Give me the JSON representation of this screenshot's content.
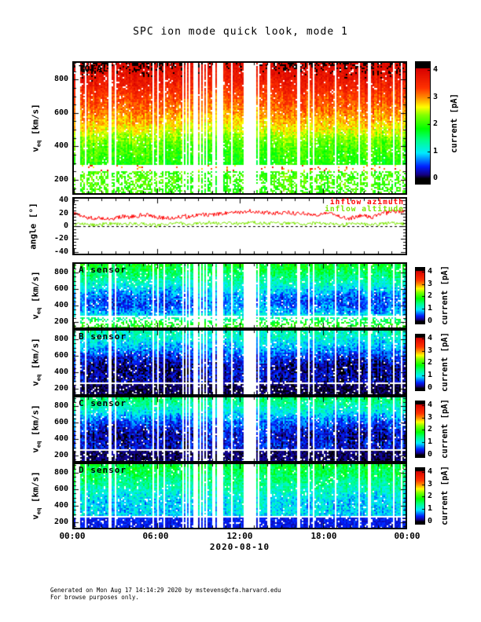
{
  "title": "SPC ion mode quick look, mode 1",
  "date_label": "2020-08-10",
  "footer": {
    "line1": "Generated on Mon Aug 17 14:14:29 2020 by mstevens@cfa.harvard.edu",
    "line2": "For browse purposes only."
  },
  "x_axis": {
    "tick_labels": [
      "00:00",
      "06:00",
      "12:00",
      "18:00",
      "00:00"
    ],
    "tick_hours": [
      0,
      6,
      12,
      18,
      24
    ],
    "minor_step_hours": 1,
    "span_hours": 24,
    "label": "2020-08-10"
  },
  "colorbar": {
    "label": "current [pA]",
    "ticks": [
      0,
      1,
      2,
      3,
      4
    ],
    "range": [
      -0.2,
      4.3
    ],
    "saturation_black_above": 4.08
  },
  "colors": {
    "background": "#ffffff",
    "axis": "#000000",
    "azimuth_line": "#ff0000",
    "altitude_line": "#7ce600",
    "colormap": "black-blue-cyan-green-yellow-orange-red rainbow"
  },
  "activity_by_hour": [
    0.55,
    0.8,
    0.9,
    0.9,
    0.85,
    0.9,
    0.9,
    0.85,
    0.7,
    0.35,
    0.3,
    0.35,
    0.45,
    0.3,
    0.35,
    0.8,
    0.9,
    0.8,
    0.55,
    0.8,
    0.9,
    0.9,
    0.85,
    0.65,
    0.55
  ],
  "data_gaps": {
    "wide_gaps_hours": [
      [
        2.55,
        2.75
      ],
      [
        6.0,
        6.15
      ],
      [
        8.65,
        8.95
      ],
      [
        10.3,
        10.65
      ],
      [
        12.55,
        13.25
      ],
      [
        14.0,
        14.2
      ],
      [
        16.2,
        16.4
      ],
      [
        18.85,
        19.05
      ],
      [
        21.3,
        21.45
      ]
    ],
    "narrow_gap_base_probability": 0.07,
    "quiet_gap_extra": 0.5
  },
  "chart_data": [
    {
      "id": "total",
      "type": "heatmap",
      "label": "TOTAL",
      "ylabel": "v_eq [km/s]",
      "ylim": [
        120,
        900
      ],
      "yticks": [
        200,
        400,
        600,
        800
      ],
      "y_minor_step": 50,
      "white_band_v": [
        255,
        285
      ],
      "profile": {
        "v": [
          150,
          200,
          250,
          300,
          350,
          400,
          450,
          500,
          550,
          600,
          700,
          800,
          900
        ],
        "current": [
          2.0,
          2.1,
          2.0,
          1.9,
          2.0,
          2.1,
          2.3,
          2.6,
          2.8,
          3.0,
          3.3,
          3.7,
          4.0
        ]
      },
      "noise": 0.25,
      "active_dip": 0,
      "bottom_dropout": 0.35,
      "band_speckle_current": 3.2
    },
    {
      "id": "angle",
      "type": "line",
      "label": "",
      "ylabel": "angle [°]",
      "ylim": [
        -43,
        43
      ],
      "yticks": [
        -40,
        -20,
        0,
        20,
        40
      ],
      "y_minor_step": 5,
      "zero_line": "dashed",
      "x_step_hours": 0.5,
      "series": [
        {
          "name": "inflow azimuth",
          "color": "#ff0000",
          "jitter_deg": 3.2,
          "values": [
            20,
            17,
            14,
            12,
            13,
            12,
            13,
            15,
            14,
            16,
            18,
            17,
            14,
            13,
            12,
            14,
            16,
            15,
            17,
            18,
            17,
            19,
            20,
            22,
            21,
            23,
            24,
            22,
            21,
            20,
            21,
            22,
            20,
            21,
            19,
            18,
            19,
            20,
            17,
            14,
            12,
            15,
            17,
            13,
            18,
            22,
            24,
            23,
            24
          ]
        },
        {
          "name": "inflow altitude",
          "color": "#7ce600",
          "jitter_deg": 2.6,
          "values": [
            3,
            4,
            3,
            2,
            3,
            4,
            3,
            3,
            4,
            3,
            4,
            3,
            2,
            3,
            4,
            5,
            4,
            3,
            4,
            5,
            4,
            5,
            6,
            5,
            4,
            5,
            6,
            5,
            4,
            5,
            4,
            5,
            4,
            3,
            4,
            5,
            4,
            3,
            3,
            2,
            3,
            4,
            3,
            2,
            3,
            4,
            5,
            4,
            3
          ]
        }
      ]
    },
    {
      "id": "a_sensor",
      "type": "heatmap",
      "label": "A sensor",
      "ylabel": "v_eq [km/s]",
      "ylim": [
        135,
        905
      ],
      "yticks": [
        200,
        400,
        600,
        800
      ],
      "y_minor_step": 50,
      "white_band_v": [
        250,
        285
      ],
      "profile": {
        "v": [
          150,
          200,
          250,
          300,
          350,
          400,
          450,
          500,
          600,
          700,
          800,
          900
        ],
        "current": [
          2.0,
          1.8,
          1.5,
          1.1,
          1.0,
          0.95,
          0.95,
          1.0,
          1.2,
          1.4,
          1.6,
          1.8
        ]
      },
      "noise": 0.3,
      "active_dip": 0.5,
      "bottom_dropout": 0.45
    },
    {
      "id": "b_sensor",
      "type": "heatmap",
      "label": "B sensor",
      "ylabel": "v_eq [km/s]",
      "ylim": [
        135,
        905
      ],
      "yticks": [
        200,
        400,
        600,
        800
      ],
      "y_minor_step": 50,
      "white_band_v": [
        250,
        285
      ],
      "profile": {
        "v": [
          150,
          200,
          250,
          300,
          350,
          400,
          450,
          500,
          600,
          700,
          800,
          900
        ],
        "current": [
          0.1,
          0.1,
          0.3,
          0.45,
          0.5,
          0.5,
          0.5,
          0.55,
          0.7,
          0.9,
          1.1,
          1.25
        ]
      },
      "noise": 0.3,
      "active_dip": 0.45,
      "bottom_dropout": 0.15,
      "bottom_band": {
        "v_below": 250,
        "current": 0.08
      }
    },
    {
      "id": "c_sensor",
      "type": "heatmap",
      "label": "C sensor",
      "ylabel": "v_eq [km/s]",
      "ylim": [
        135,
        905
      ],
      "yticks": [
        200,
        400,
        600,
        800
      ],
      "y_minor_step": 50,
      "white_band_v": [
        250,
        285
      ],
      "profile": {
        "v": [
          150,
          200,
          250,
          300,
          350,
          400,
          450,
          500,
          600,
          700,
          800,
          900
        ],
        "current": [
          0.1,
          0.15,
          0.4,
          0.55,
          0.6,
          0.6,
          0.6,
          0.65,
          0.8,
          1.0,
          1.3,
          1.5
        ]
      },
      "noise": 0.3,
      "active_dip": 0.45,
      "bottom_dropout": 0.15,
      "bottom_band": {
        "v_below": 250,
        "current": 0.12
      }
    },
    {
      "id": "d_sensor",
      "type": "heatmap",
      "label": "D sensor",
      "ylabel": "v_eq [km/s]",
      "ylim": [
        135,
        905
      ],
      "yticks": [
        200,
        400,
        600,
        800
      ],
      "y_minor_step": 50,
      "white_band_v": [
        250,
        285
      ],
      "profile": {
        "v": [
          150,
          200,
          250,
          300,
          350,
          400,
          450,
          500,
          600,
          700,
          800,
          900
        ],
        "current": [
          0.35,
          0.4,
          0.9,
          1.1,
          1.15,
          1.2,
          1.2,
          1.25,
          1.4,
          1.5,
          1.6,
          1.7
        ]
      },
      "noise": 0.3,
      "active_dip": 0.35,
      "bottom_dropout": 0.2,
      "bottom_band": {
        "v_below": 250,
        "current": 0.4
      }
    }
  ]
}
